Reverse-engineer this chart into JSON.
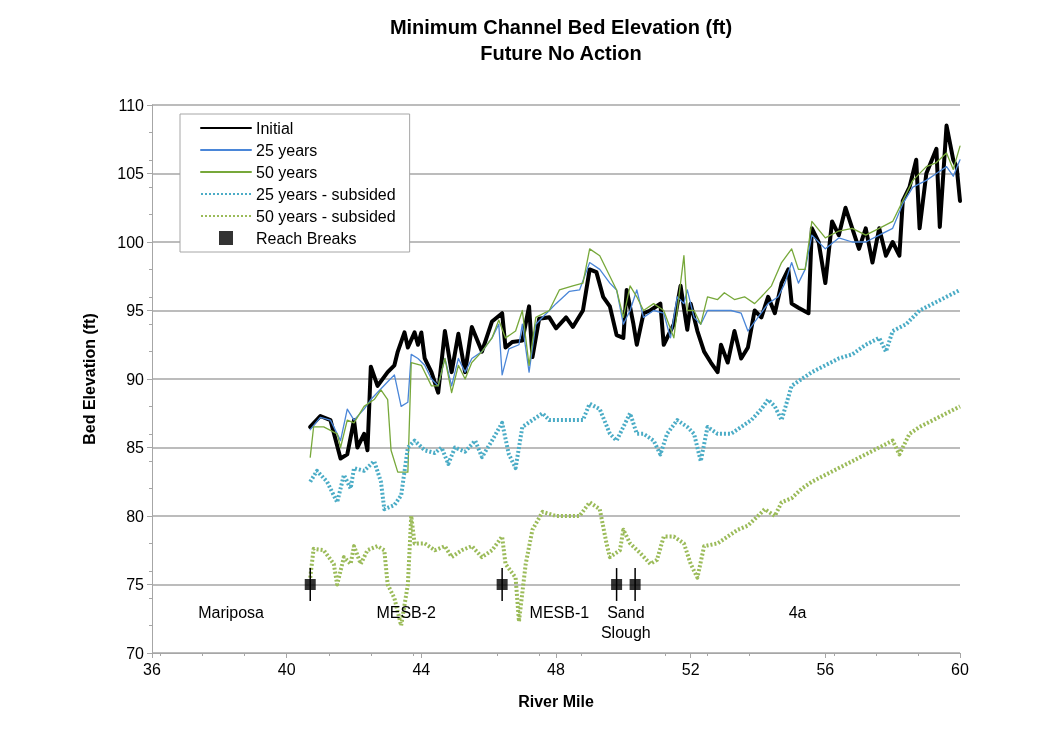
{
  "chart_data": {
    "type": "line",
    "title": "Minimum Channel Bed Elevation (ft)",
    "subtitle": "Future No Action",
    "xlabel": "River Mile",
    "ylabel": "Bed Elevation (ft)",
    "xlim": [
      36,
      60
    ],
    "xticks": [
      36,
      40,
      44,
      48,
      52,
      56,
      60
    ],
    "ylim": [
      70,
      110
    ],
    "yticks": [
      70,
      75,
      80,
      85,
      90,
      95,
      100,
      105,
      110
    ],
    "grid": "y",
    "legend": "top left",
    "marker": "none",
    "series": [
      {
        "name": "Initial",
        "color": "#000000",
        "line_style": "solid",
        "x": [
          40.7,
          41.0,
          41.3,
          41.6,
          41.8,
          42.0,
          42.1,
          42.3,
          42.4,
          42.5,
          42.7,
          43.0,
          43.2,
          43.3,
          43.5,
          43.6,
          43.8,
          43.9,
          44.0,
          44.1,
          44.3,
          44.5,
          44.7,
          44.9,
          45.1,
          45.3,
          45.5,
          45.8,
          46.1,
          46.4,
          46.5,
          46.7,
          47.0,
          47.2,
          47.3,
          47.5,
          47.8,
          48.0,
          48.3,
          48.5,
          48.8,
          49.0,
          49.2,
          49.4,
          49.6,
          49.8,
          50.0,
          50.1,
          50.3,
          50.4,
          50.6,
          50.8,
          51.1,
          51.2,
          51.5,
          51.7,
          51.9,
          52.0,
          52.2,
          52.4,
          52.6,
          52.8,
          52.9,
          53.1,
          53.3,
          53.5,
          53.7,
          53.9,
          54.1,
          54.3,
          54.5,
          54.7,
          54.9,
          55.0,
          55.2,
          55.5,
          55.6,
          55.8,
          56.0,
          56.2,
          56.4,
          56.6,
          56.8,
          57.0,
          57.2,
          57.4,
          57.6,
          57.8,
          58.0,
          58.2,
          58.3,
          58.5,
          58.7,
          58.8,
          59.0,
          59.3,
          59.4,
          59.6,
          59.8,
          59.9,
          60.0
        ],
        "values": [
          86.5,
          87.3,
          87,
          84.2,
          84.5,
          87,
          85,
          86,
          84.8,
          90.9,
          89.5,
          90.5,
          91,
          92,
          93.4,
          92.3,
          93.4,
          92.5,
          93.4,
          91.5,
          90.5,
          89,
          93.5,
          90.5,
          93.3,
          90.5,
          93.8,
          92,
          94.2,
          94.8,
          92.3,
          92.7,
          92.8,
          95.3,
          91.6,
          94.4,
          94.5,
          93.7,
          94.5,
          93.8,
          95,
          98,
          97.8,
          96,
          95.3,
          93.2,
          93,
          96.5,
          94,
          92.5,
          94.8,
          95,
          95.5,
          92.5,
          94,
          96.8,
          93.6,
          95.5,
          93.5,
          92,
          91.2,
          90.5,
          92.5,
          91.2,
          93.5,
          91.5,
          92.3,
          95,
          94.5,
          96,
          94.8,
          97,
          98,
          95.5,
          95.2,
          94.8,
          101,
          100,
          97,
          101.5,
          100.5,
          102.5,
          101,
          99.5,
          101,
          98.5,
          101,
          99,
          100,
          99,
          103,
          104,
          106,
          101,
          105,
          106.8,
          101.1,
          108.5,
          106,
          105.5,
          103
        ]
      },
      {
        "name": "25 years",
        "color": "#4a86d8",
        "line_style": "solid",
        "x": [
          40.7,
          41.0,
          41.3,
          41.6,
          41.8,
          42.0,
          42.3,
          42.5,
          43.0,
          43.2,
          43.4,
          43.6,
          43.7,
          43.9,
          44.1,
          44.3,
          44.5,
          44.7,
          44.9,
          45.1,
          45.3,
          45.5,
          45.8,
          46.1,
          46.3,
          46.4,
          46.6,
          46.9,
          47.0,
          47.2,
          47.4,
          47.8,
          48.0,
          48.4,
          48.7,
          49.0,
          49.3,
          49.6,
          49.8,
          50.0,
          50.2,
          50.4,
          50.6,
          50.9,
          51.2,
          51.4,
          51.6,
          51.8,
          51.9,
          52.1,
          52.3,
          52.5,
          52.9,
          53.2,
          53.5,
          53.7,
          54.0,
          54.3,
          54.6,
          54.8,
          55.0,
          55.2,
          55.4,
          55.6,
          56.0,
          56.4,
          56.8,
          57.2,
          57.6,
          58.0,
          58.3,
          58.6,
          59.0,
          59.3,
          59.6,
          59.8,
          60.0
        ],
        "values": [
          86.3,
          87.2,
          87,
          85.5,
          87.8,
          87,
          87.8,
          88.5,
          89.8,
          90.3,
          88,
          88.3,
          91.8,
          91.5,
          91,
          90,
          89.5,
          91.5,
          89.5,
          91.5,
          90.5,
          91.5,
          92,
          93,
          94,
          90.3,
          92.2,
          92.5,
          94,
          90.5,
          94,
          95,
          95.5,
          96.4,
          96.5,
          98.5,
          98,
          97,
          96.5,
          94,
          95,
          96.5,
          94.5,
          95,
          94.8,
          93,
          96,
          95.5,
          96.5,
          94.5,
          94,
          95,
          95,
          95,
          94.8,
          93.5,
          94.5,
          95.5,
          96,
          97,
          98.5,
          97,
          98,
          100.5,
          99.5,
          100.3,
          100,
          100,
          100.5,
          101,
          102.8,
          104,
          104.5,
          105,
          105.5,
          104.8,
          106
        ]
      },
      {
        "name": "50 years",
        "color": "#77a83a",
        "line_style": "solid",
        "x": [
          40.7,
          40.8,
          41.1,
          41.5,
          41.6,
          41.8,
          42.0,
          42.3,
          42.6,
          42.8,
          43.0,
          43.1,
          43.3,
          43.6,
          43.7,
          44.0,
          44.3,
          44.5,
          44.7,
          44.9,
          45.1,
          45.3,
          45.5,
          45.8,
          46.1,
          46.3,
          46.5,
          46.8,
          47.0,
          47.2,
          47.4,
          47.8,
          48.1,
          48.5,
          48.8,
          49.0,
          49.3,
          49.6,
          49.8,
          50.0,
          50.2,
          50.4,
          50.6,
          50.9,
          51.2,
          51.5,
          51.7,
          51.8,
          51.9,
          52.1,
          52.3,
          52.5,
          52.8,
          53.0,
          53.3,
          53.6,
          53.9,
          54.1,
          54.4,
          54.7,
          55.0,
          55.2,
          55.4,
          55.6,
          56.0,
          56.4,
          56.8,
          57.2,
          57.6,
          58.0,
          58.3,
          58.6,
          59.0,
          59.3,
          59.6,
          59.8,
          60.0
        ],
        "values": [
          84.3,
          86.5,
          86.5,
          86,
          85,
          87,
          86.8,
          88,
          88.5,
          89.2,
          88.5,
          84.8,
          83.2,
          83.2,
          91.2,
          91,
          89.5,
          89.5,
          91.5,
          89,
          91,
          90,
          91.2,
          92,
          93,
          94.3,
          93,
          93.5,
          95,
          91,
          94.5,
          95,
          96.5,
          96.8,
          97,
          99.5,
          99,
          97.5,
          96.5,
          94.5,
          96.8,
          96,
          95,
          95.5,
          95,
          93,
          97,
          99,
          95,
          95,
          94,
          96,
          95.8,
          96.3,
          95.8,
          96,
          95.5,
          96,
          96.8,
          98.5,
          99.5,
          98,
          98,
          101.5,
          100.3,
          100.8,
          101,
          100.5,
          101,
          101.5,
          103,
          104.5,
          105.5,
          105.8,
          106.5,
          105.3,
          107
        ]
      },
      {
        "name": "25 years - subsided",
        "color": "#4bacc6",
        "line_style": "dotted",
        "x": [
          40.7,
          40.9,
          41.2,
          41.5,
          41.7,
          41.9,
          42.0,
          42.3,
          42.6,
          42.8,
          42.9,
          43.2,
          43.4,
          43.6,
          43.8,
          44.1,
          44.4,
          44.6,
          44.8,
          45.0,
          45.3,
          45.6,
          45.8,
          46.1,
          46.4,
          46.6,
          46.8,
          47.0,
          47.3,
          47.6,
          47.8,
          48.1,
          48.4,
          48.8,
          49.0,
          49.3,
          49.6,
          49.8,
          50.0,
          50.2,
          50.4,
          50.6,
          50.9,
          51.1,
          51.3,
          51.6,
          51.9,
          52.1,
          52.3,
          52.5,
          52.8,
          53.2,
          53.5,
          53.8,
          54.1,
          54.3,
          54.5,
          54.7,
          55.0,
          55.3,
          55.6,
          56.0,
          56.4,
          56.8,
          57.2,
          57.6,
          57.8,
          58.0,
          58.4,
          58.8,
          59.2,
          59.6,
          60.0
        ],
        "values": [
          82.5,
          83.3,
          82.5,
          81,
          83,
          82,
          83.5,
          83.3,
          84,
          82.5,
          80.5,
          80.8,
          81.5,
          85,
          85.5,
          84.8,
          84.6,
          85,
          83.8,
          85,
          84.7,
          85.5,
          84.3,
          85.5,
          86.8,
          84.5,
          83.5,
          86.5,
          87,
          87.5,
          87,
          87,
          87,
          87,
          88.2,
          87.8,
          86,
          85.5,
          86.5,
          87.5,
          86,
          86,
          85.5,
          84.5,
          86,
          87,
          86.5,
          86,
          84,
          86.5,
          86,
          86,
          86.5,
          87,
          87.8,
          88.5,
          88,
          87,
          89.5,
          90,
          90.5,
          91,
          91.5,
          91.8,
          92.5,
          93,
          92,
          93.5,
          94,
          95,
          95.5,
          96,
          96.5
        ]
      },
      {
        "name": "50 years - subsided",
        "color": "#9bbb59",
        "line_style": "dotted",
        "x": [
          40.7,
          40.8,
          41.1,
          41.4,
          41.5,
          41.7,
          41.9,
          42.0,
          42.2,
          42.4,
          42.7,
          42.9,
          43.0,
          43.2,
          43.4,
          43.6,
          43.7,
          43.8,
          44.1,
          44.4,
          44.7,
          44.9,
          45.2,
          45.5,
          45.8,
          46.1,
          46.4,
          46.5,
          46.8,
          46.9,
          47.1,
          47.3,
          47.6,
          48.0,
          48.4,
          48.7,
          49.0,
          49.3,
          49.5,
          49.6,
          49.9,
          50.0,
          50.2,
          50.5,
          50.8,
          51.0,
          51.2,
          51.5,
          51.8,
          52.0,
          52.2,
          52.4,
          52.8,
          53.1,
          53.4,
          53.7,
          54.0,
          54.2,
          54.5,
          54.7,
          55.0,
          55.3,
          55.6,
          56.0,
          56.4,
          56.8,
          57.2,
          57.6,
          58.0,
          58.2,
          58.5,
          58.8,
          59.2,
          59.6,
          60.0
        ],
        "values": [
          75.5,
          77.6,
          77.5,
          76.5,
          75,
          77,
          76.5,
          77.8,
          76.5,
          77.5,
          77.8,
          77.5,
          75,
          74,
          72,
          75,
          80,
          78,
          78,
          77.5,
          77.8,
          77,
          77.5,
          77.8,
          77,
          77.5,
          78.5,
          76.5,
          75.5,
          72.3,
          76.5,
          79,
          80.3,
          80,
          80,
          80,
          81,
          80.5,
          78,
          77,
          77.5,
          79,
          78,
          77.3,
          76.5,
          76.8,
          78.5,
          78.5,
          78,
          76.5,
          75.5,
          77.8,
          78,
          78.5,
          79,
          79.3,
          80,
          80.5,
          80,
          81,
          81.3,
          82,
          82.5,
          83,
          83.5,
          84,
          84.5,
          85,
          85.5,
          84.5,
          86,
          86.5,
          87,
          87.5,
          88
        ]
      },
      {
        "name": "Reach Breaks",
        "type": "scatter",
        "marker": "square",
        "color": "#000000",
        "x": [
          40.7,
          46.4,
          49.8,
          50.35
        ],
        "values": [
          75,
          75,
          75,
          75
        ],
        "errors": [
          1.2,
          1.2,
          1.2,
          1.2
        ]
      }
    ],
    "annotations": [
      "Mariposa",
      "MESB-2",
      "MESB-1",
      "Sand\nSlough",
      "4a"
    ]
  }
}
